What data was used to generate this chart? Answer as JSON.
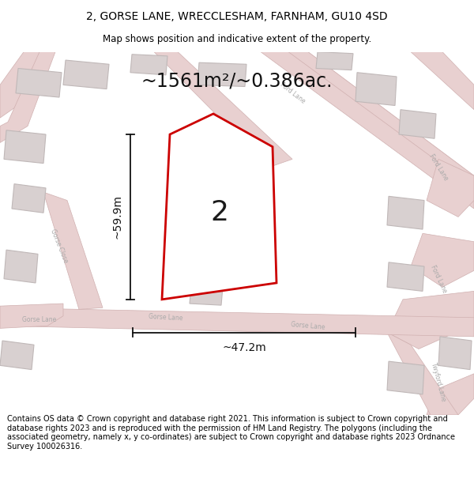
{
  "title": "2, GORSE LANE, WRECCLESHAM, FARNHAM, GU10 4SD",
  "subtitle": "Map shows position and indicative extent of the property.",
  "area_text": "~1561m²/~0.386ac.",
  "plot_number": "2",
  "dim_width": "~47.2m",
  "dim_height": "~59.9m",
  "footer": "Contains OS data © Crown copyright and database right 2021. This information is subject to Crown copyright and database rights 2023 and is reproduced with the permission of HM Land Registry. The polygons (including the associated geometry, namely x, y co-ordinates) are subject to Crown copyright and database rights 2023 Ordnance Survey 100026316.",
  "map_bg": "#f7f3f3",
  "plot_color": "#cc0000",
  "plot_fill": "#ffffff",
  "road_fill": "#e8d0d0",
  "road_edge": "#d0b0b0",
  "building_fill": "#d8d0d0",
  "building_edge": "#c0b8b8",
  "label_color": "#aaaaaa",
  "title_fontsize": 10,
  "subtitle_fontsize": 8.5,
  "area_fontsize": 17,
  "plot_number_fontsize": 26,
  "dim_fontsize": 10,
  "road_label_fontsize": 5.5,
  "footer_fontsize": 7.0
}
